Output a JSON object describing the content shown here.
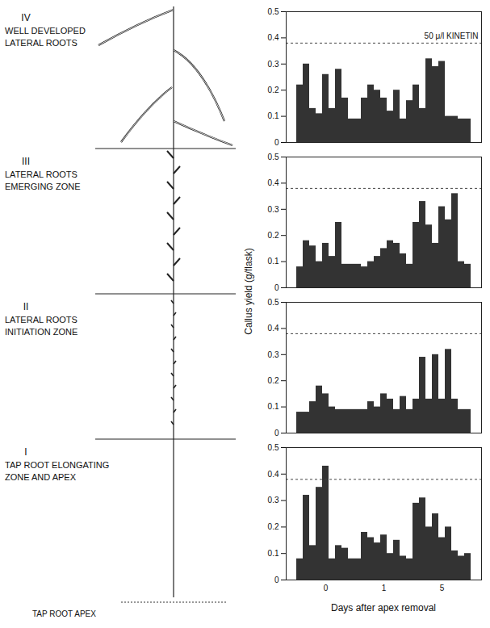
{
  "diagram": {
    "zones": [
      {
        "numeral": "IV",
        "lines": [
          "WELL DEVELOPED",
          "LATERAL ROOTS"
        ]
      },
      {
        "numeral": "III",
        "lines": [
          "LATERAL ROOTS",
          "EMERGING ZONE"
        ]
      },
      {
        "numeral": "II",
        "lines": [
          "LATERAL ROOTS",
          "INITIATION ZONE"
        ]
      },
      {
        "numeral": "I",
        "lines": [
          "TAP ROOT ELONGATING",
          "ZONE AND APEX"
        ]
      }
    ],
    "apex_label": "TAP ROOT APEX"
  },
  "ylabel": "Callus yield (g/flask)",
  "xlabel": "Days after apex removal",
  "chart_data": [
    {
      "type": "bar",
      "categories": [
        null,
        null,
        null,
        null,
        "0",
        null,
        null,
        null,
        null,
        null,
        null,
        null,
        null,
        "1",
        null,
        null,
        null,
        null,
        null,
        null,
        null,
        null,
        "5",
        null,
        null,
        null,
        null
      ],
      "values": [
        0.22,
        0.3,
        0.13,
        0.11,
        0.26,
        0.13,
        0.28,
        0.17,
        0.09,
        0.09,
        0.17,
        0.22,
        0.2,
        0.17,
        0.12,
        0.2,
        0.09,
        0.16,
        0.22,
        0.13,
        0.32,
        0.29,
        0.31,
        0.1,
        0.1,
        0.09,
        0.09
      ],
      "color": "#333333",
      "ylim": [
        0,
        0.5
      ],
      "yticks": [
        0,
        0.1,
        0.2,
        0.3,
        0.4,
        0.5
      ],
      "tick_labels": "y",
      "reference_value": 0.38,
      "reference_label": "50 μ/l KINETIN"
    },
    {
      "type": "bar",
      "categories": [
        null,
        null,
        null,
        null,
        "0",
        null,
        null,
        null,
        null,
        null,
        null,
        null,
        null,
        "1",
        null,
        null,
        null,
        null,
        null,
        null,
        null,
        null,
        "5",
        null,
        null,
        null,
        null
      ],
      "values": [
        0.08,
        0.18,
        0.16,
        0.1,
        0.17,
        0.12,
        0.25,
        0.09,
        0.09,
        0.09,
        0.08,
        0.1,
        0.12,
        0.15,
        0.18,
        0.17,
        0.13,
        0.09,
        0.25,
        0.33,
        0.24,
        0.17,
        0.31,
        0.26,
        0.36,
        0.1,
        0.09
      ],
      "color": "#333333",
      "ylim": [
        0,
        0.5
      ],
      "yticks": [
        0,
        0.1,
        0.2,
        0.3,
        0.4,
        0.5
      ],
      "tick_labels": "y",
      "reference_value": 0.38
    },
    {
      "type": "bar",
      "categories": [
        null,
        null,
        null,
        null,
        "0",
        null,
        null,
        null,
        null,
        null,
        null,
        null,
        null,
        "1",
        null,
        null,
        null,
        null,
        null,
        null,
        null,
        null,
        "5",
        null,
        null,
        null,
        null
      ],
      "values": [
        0.08,
        0.08,
        0.12,
        0.18,
        0.15,
        0.1,
        0.09,
        0.09,
        0.09,
        0.09,
        0.09,
        0.12,
        0.1,
        0.15,
        0.13,
        0.09,
        0.14,
        0.09,
        0.13,
        0.29,
        0.13,
        0.3,
        0.13,
        0.32,
        0.13,
        0.09,
        0.09
      ],
      "color": "#333333",
      "ylim": [
        0,
        0.5
      ],
      "yticks": [
        0,
        0.1,
        0.2,
        0.3,
        0.4,
        0.5
      ],
      "tick_labels": "y",
      "reference_value": 0.38
    },
    {
      "type": "bar",
      "categories": [
        null,
        null,
        null,
        null,
        "0",
        null,
        null,
        null,
        null,
        null,
        null,
        null,
        null,
        "1",
        null,
        null,
        null,
        null,
        null,
        null,
        null,
        null,
        "5",
        null,
        null,
        null,
        null
      ],
      "values": [
        0.08,
        0.32,
        0.13,
        0.35,
        0.43,
        0.08,
        0.13,
        0.12,
        0.08,
        0.08,
        0.18,
        0.16,
        0.14,
        0.17,
        0.1,
        0.15,
        0.09,
        0.08,
        0.29,
        0.31,
        0.2,
        0.25,
        0.16,
        0.2,
        0.11,
        0.09,
        0.1
      ],
      "color": "#333333",
      "ylim": [
        0,
        0.5
      ],
      "yticks": [
        0,
        0.1,
        0.2,
        0.3,
        0.4,
        0.5
      ],
      "reference_value": 0.38
    }
  ]
}
